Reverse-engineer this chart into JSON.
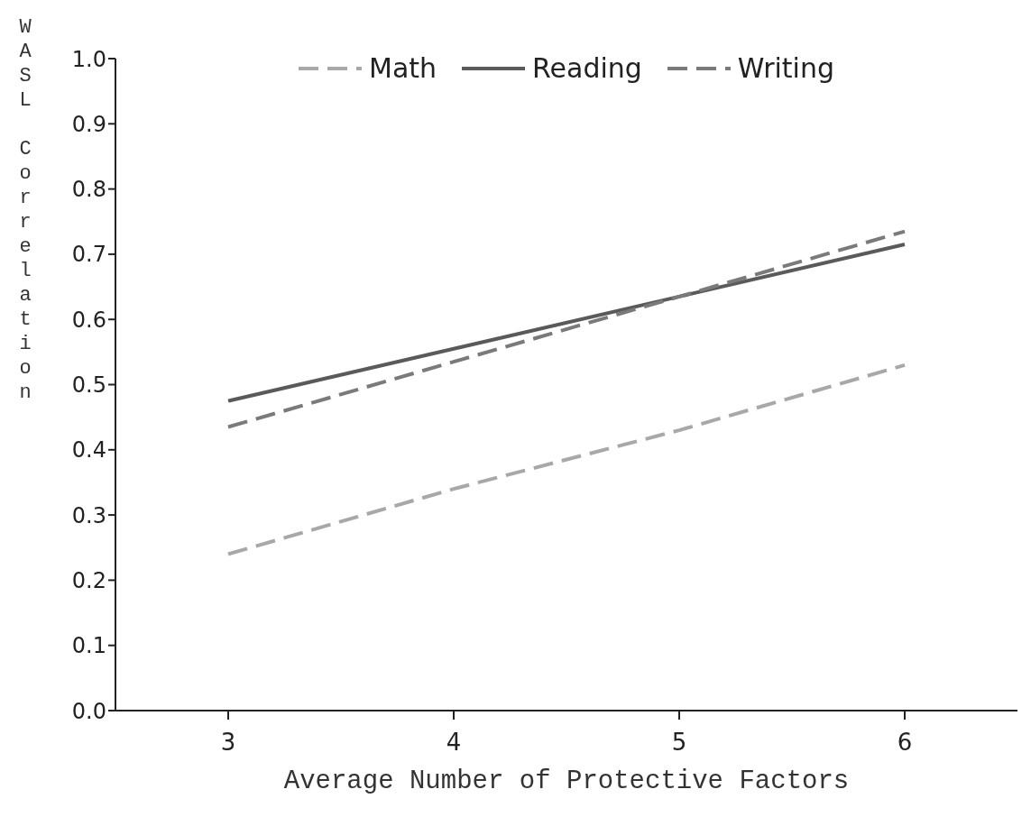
{
  "chart_data": {
    "type": "line",
    "xlabel": "Average Number of Protective Factors",
    "ylabel": "WASL Correlation",
    "categories": [
      "3",
      "4",
      "5",
      "6"
    ],
    "series": [
      {
        "name": "Math",
        "color": "#a8a8a8",
        "values": [
          0.24,
          0.34,
          0.43,
          0.53
        ],
        "line_style": "dashed"
      },
      {
        "name": "Reading",
        "color": "#5a5a5a",
        "values": [
          0.475,
          0.555,
          0.635,
          0.715
        ],
        "line_style": "solid"
      },
      {
        "name": "Writing",
        "color": "#7a7a7a",
        "values": [
          0.435,
          0.535,
          0.635,
          0.735
        ],
        "line_style": "dashed"
      }
    ],
    "ylim": [
      0,
      1
    ],
    "yticks": [
      {
        "value": 0,
        "label": "0.0"
      },
      {
        "value": 0.1,
        "label": "0.1"
      },
      {
        "value": 0.2,
        "label": "0.2"
      },
      {
        "value": 0.3,
        "label": "0.3"
      },
      {
        "value": 0.4,
        "label": "0.4"
      },
      {
        "value": 0.5,
        "label": "0.5"
      },
      {
        "value": 0.6,
        "label": "0.6"
      },
      {
        "value": 0.7,
        "label": "0.7"
      },
      {
        "value": 0.8,
        "label": "0.8"
      },
      {
        "value": 0.9,
        "label": "0.9"
      },
      {
        "value": 1,
        "label": "1.0"
      }
    ],
    "grid": false,
    "legend": "top",
    "marker": "none"
  }
}
